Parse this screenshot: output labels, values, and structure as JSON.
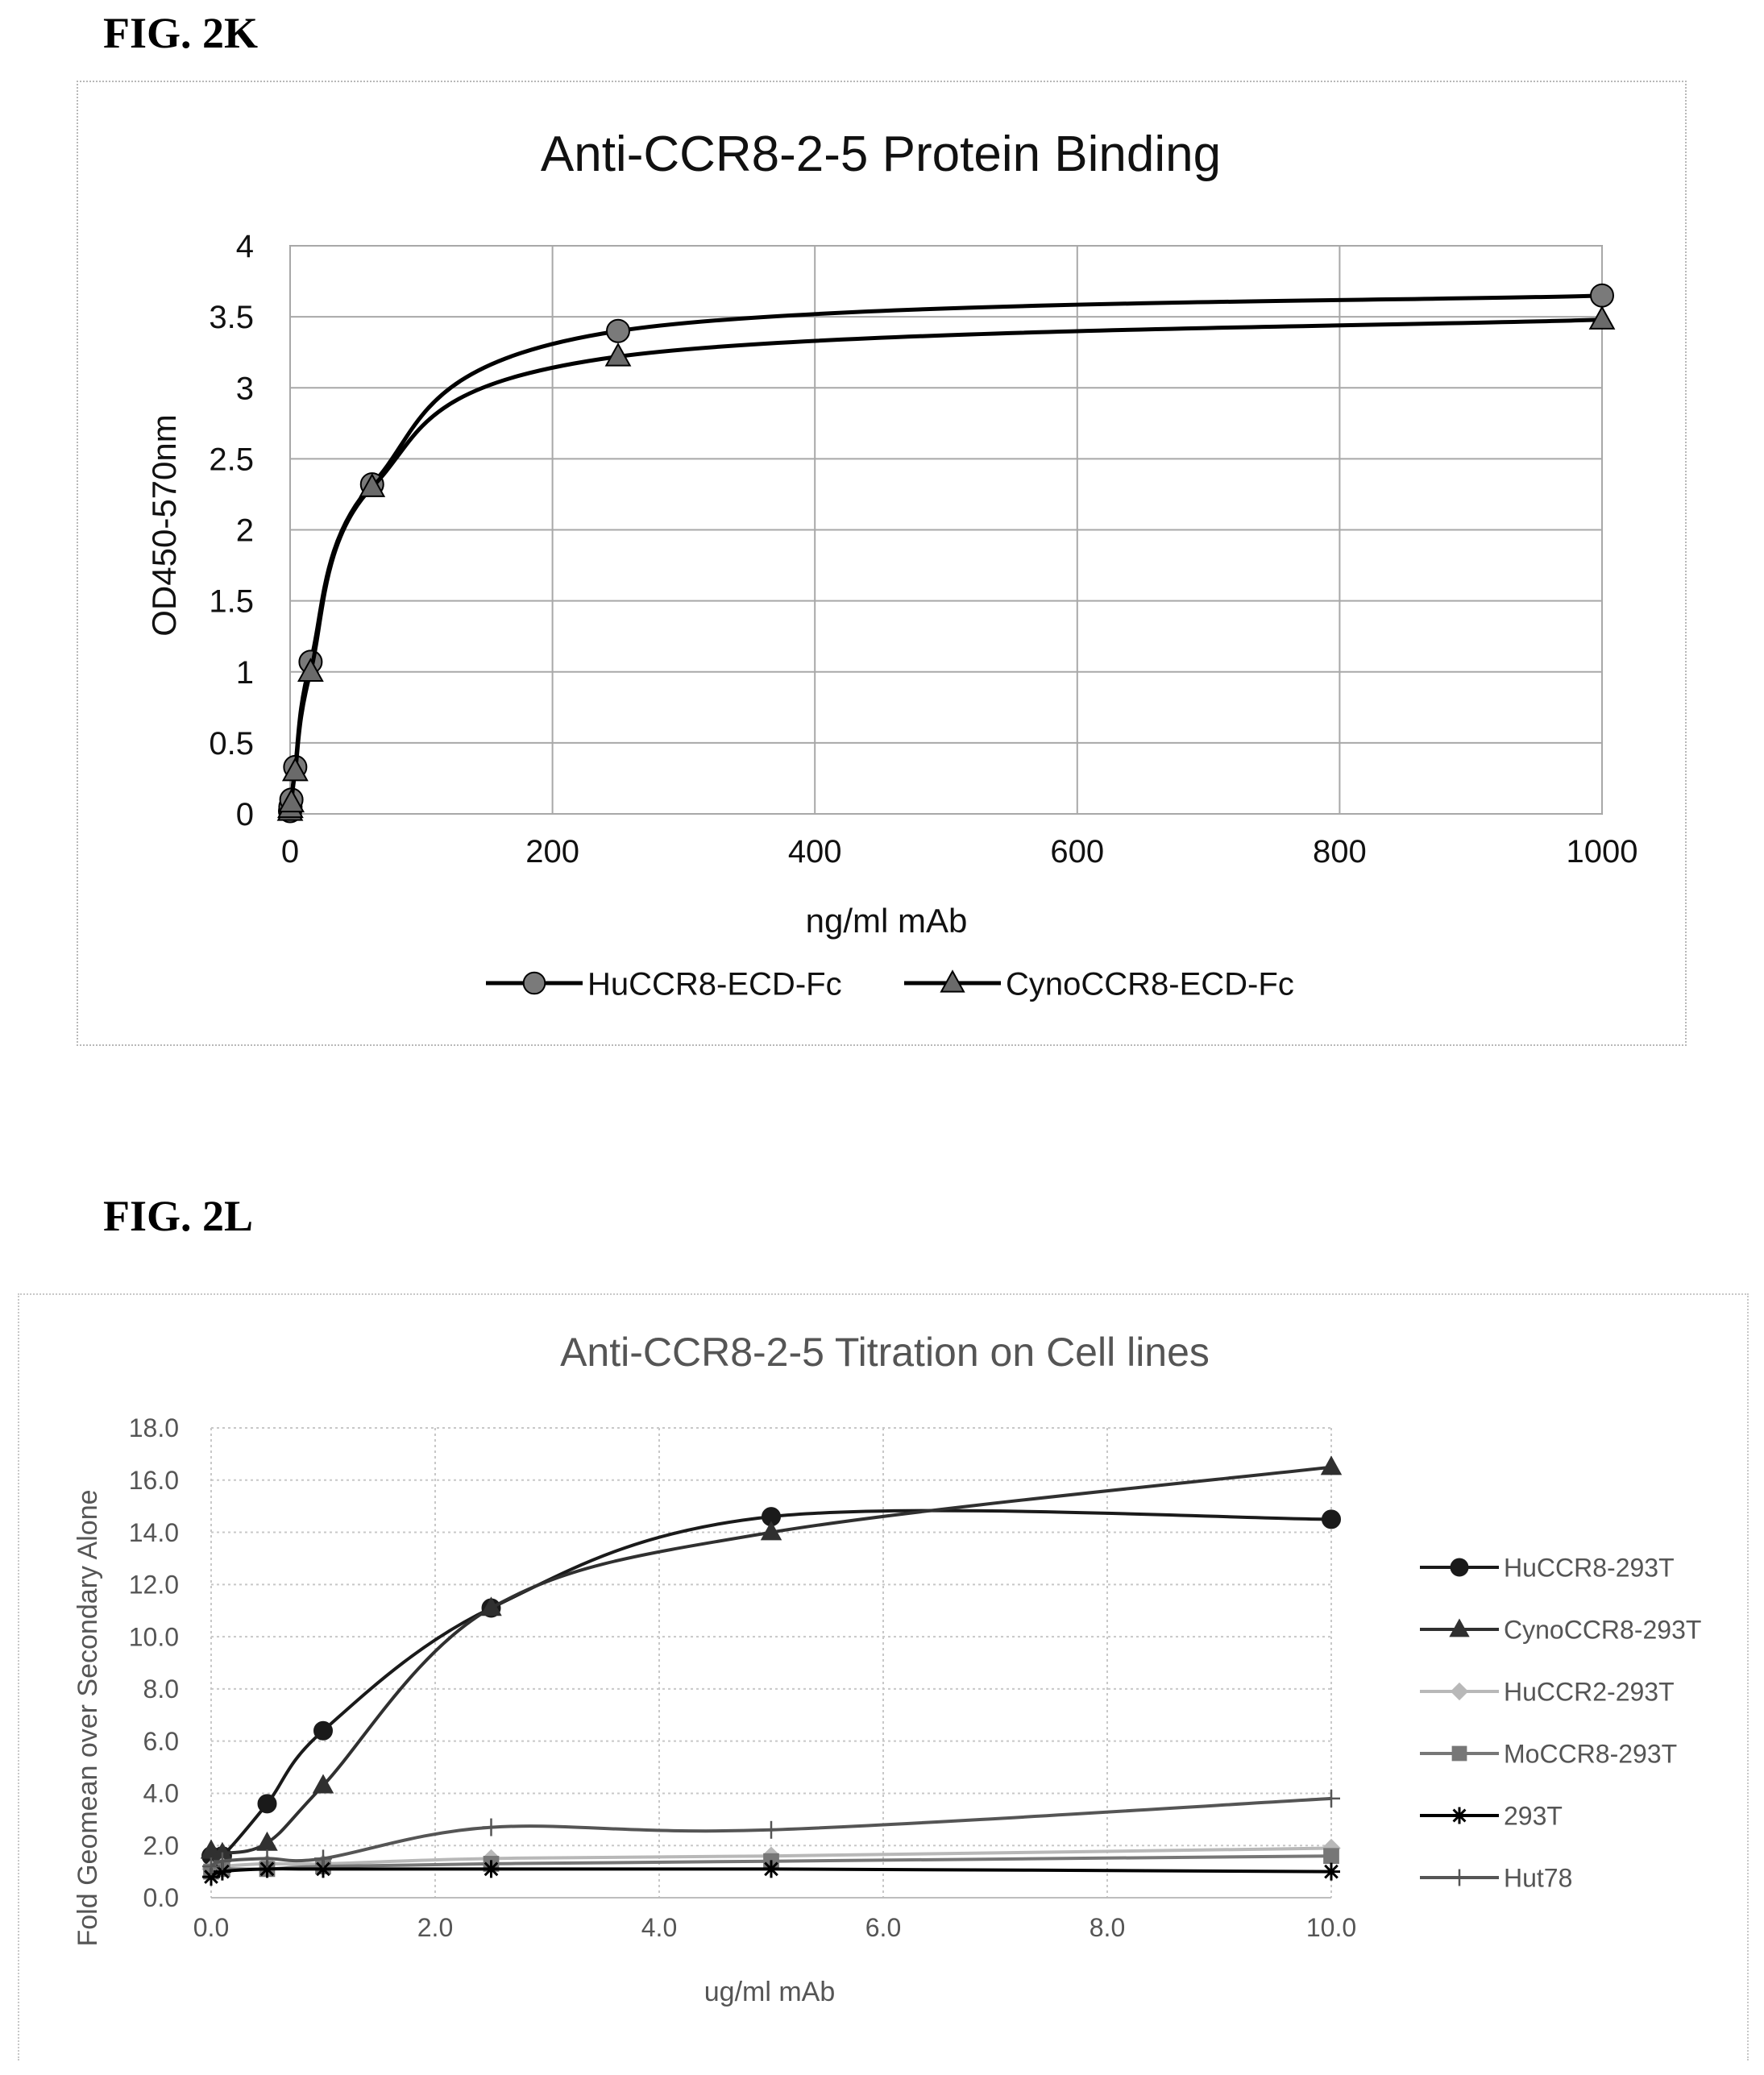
{
  "figures": [
    {
      "label": "FIG. 2K"
    },
    {
      "label": "FIG. 2L"
    }
  ],
  "chart_data": [
    {
      "type": "line",
      "title": "Anti-CCR8-2-5 Protein Binding",
      "xlabel": "ng/ml mAb",
      "ylabel": "OD450-570nm",
      "xlim": [
        0,
        1000
      ],
      "ylim": [
        0,
        4
      ],
      "xticks": [
        "0",
        "200",
        "400",
        "600",
        "800",
        "1000"
      ],
      "yticks": [
        "0",
        "0.5",
        "1",
        "1.5",
        "2",
        "2.5",
        "3",
        "3.5",
        "4"
      ],
      "grid": true,
      "legend_position": "bottom",
      "series": [
        {
          "name": "HuCCR8-ECD-Fc",
          "marker": "circle",
          "color": "#000000",
          "marker_color": "#7a7a7a",
          "x": [
            0,
            0.24,
            0.98,
            3.9,
            15.6,
            62.5,
            250,
            1000
          ],
          "y": [
            0.02,
            0.05,
            0.1,
            0.33,
            1.07,
            2.32,
            3.4,
            3.65
          ]
        },
        {
          "name": "CynoCCR8-ECD-Fc",
          "marker": "triangle",
          "color": "#000000",
          "marker_color": "#6a6a6a",
          "x": [
            0,
            0.24,
            0.98,
            3.9,
            15.6,
            62.5,
            250,
            1000
          ],
          "y": [
            0.02,
            0.04,
            0.08,
            0.3,
            1.0,
            2.3,
            3.22,
            3.48
          ]
        }
      ]
    },
    {
      "type": "line",
      "title": "Anti-CCR8-2-5 Titration on Cell lines",
      "xlabel": "ug/ml mAb",
      "ylabel": "Fold Geomean over Secondary Alone",
      "xlim": [
        0,
        10
      ],
      "ylim": [
        0,
        18
      ],
      "xticks": [
        "0.0",
        "2.0",
        "4.0",
        "6.0",
        "8.0",
        "10.0"
      ],
      "yticks": [
        "0.0",
        "2.0",
        "4.0",
        "6.0",
        "8.0",
        "10.0",
        "12.0",
        "14.0",
        "16.0",
        "18.0"
      ],
      "grid": true,
      "legend_position": "right",
      "series": [
        {
          "name": "HuCCR8-293T",
          "marker": "circle",
          "color": "#1a1a1a",
          "x": [
            0,
            0.1,
            0.5,
            1,
            2.5,
            5,
            10
          ],
          "y": [
            1.6,
            1.6,
            3.6,
            6.4,
            11.1,
            14.6,
            14.5
          ]
        },
        {
          "name": "CynoCCR8-293T",
          "marker": "triangle",
          "color": "#303030",
          "x": [
            0,
            0.1,
            0.5,
            1,
            2.5,
            5,
            10
          ],
          "y": [
            1.8,
            1.7,
            2.1,
            4.3,
            11.1,
            14.0,
            16.5
          ]
        },
        {
          "name": "HuCCR2-293T",
          "marker": "diamond",
          "color": "#b8b8b8",
          "x": [
            0,
            0.1,
            0.5,
            1,
            2.5,
            5,
            10
          ],
          "y": [
            1.1,
            1.2,
            1.3,
            1.3,
            1.5,
            1.6,
            1.9
          ]
        },
        {
          "name": "MoCCR8-293T",
          "marker": "square",
          "color": "#777777",
          "x": [
            0,
            0.1,
            0.5,
            1,
            2.5,
            5,
            10
          ],
          "y": [
            1.0,
            1.1,
            1.1,
            1.2,
            1.3,
            1.4,
            1.6
          ]
        },
        {
          "name": "293T",
          "marker": "asterisk",
          "color": "#000000",
          "x": [
            0,
            0.1,
            0.5,
            1,
            2.5,
            5,
            10
          ],
          "y": [
            0.8,
            1.0,
            1.1,
            1.1,
            1.1,
            1.1,
            1.0
          ]
        },
        {
          "name": "Hut78",
          "marker": "plus",
          "color": "#555555",
          "x": [
            0,
            0.1,
            0.5,
            1,
            2.5,
            5,
            10
          ],
          "y": [
            1.2,
            1.4,
            1.5,
            1.5,
            2.7,
            2.6,
            3.8
          ]
        }
      ]
    }
  ]
}
